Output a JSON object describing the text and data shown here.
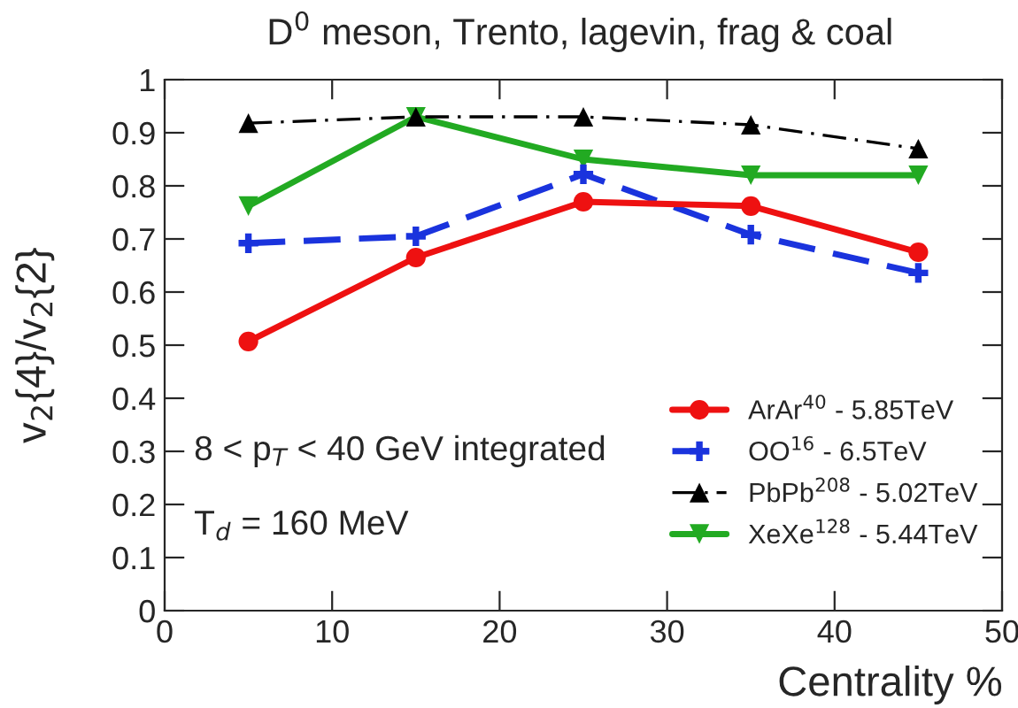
{
  "chart_data": {
    "type": "line",
    "title": "D$^{0}$ meson, Trento, lagevin, frag & coal",
    "xlabel": "Centrality %",
    "ylabel": "v$_{2}${4}/v$_{2}${2}",
    "x": [
      5,
      15,
      25,
      35,
      45
    ],
    "series": [
      {
        "name": "ArAr$^{40}$ - 5.85TeV",
        "color": "#ee1111",
        "marker": "circle",
        "line_style": "solid",
        "values": [
          0.507,
          0.665,
          0.77,
          0.762,
          0.675
        ]
      },
      {
        "name": "OO$^{16}$ - 6.5TeV",
        "color": "#1a33dd",
        "marker": "cross",
        "line_style": "dashed",
        "values": [
          0.692,
          0.705,
          0.822,
          0.708,
          0.636
        ]
      },
      {
        "name": "PbPb$^{208}$ - 5.02TeV",
        "color": "#000000",
        "marker": "triangle",
        "line_style": "dashdot",
        "values": [
          0.918,
          0.93,
          0.93,
          0.915,
          0.87
        ]
      },
      {
        "name": "XeXe$^{128}$ - 5.44TeV",
        "color": "#22aa22",
        "marker": "triangle_down",
        "line_style": "solid",
        "values": [
          0.762,
          0.93,
          0.85,
          0.82,
          0.82
        ]
      }
    ],
    "xlim": [
      0,
      50
    ],
    "xticks": [
      0,
      10,
      20,
      30,
      40,
      50
    ],
    "ylim": [
      0,
      1
    ],
    "yticks": [
      0,
      0.1,
      0.2,
      0.3,
      0.4,
      0.5,
      0.6,
      0.7,
      0.8,
      0.9,
      1
    ],
    "legend": "bottom right",
    "grid": false,
    "annotations": [
      "8 < p$_{T}$ < 40 GeV integrated",
      "T$_{d}$ = 160 MeV"
    ]
  }
}
